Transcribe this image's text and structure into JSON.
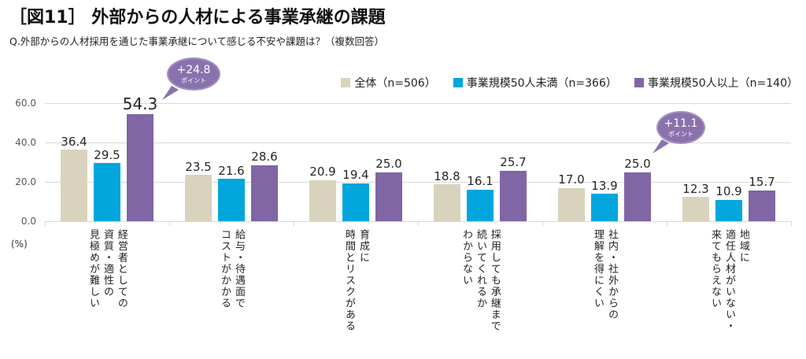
{
  "title": "［図11］ 外部からの人材による事業承継の課題",
  "subtitle": "Q.外部からの人材採用を通じた事業承継について感じる不安や課題は？（複数回答）",
  "legend": [
    {
      "label": "全体（n=506）",
      "color": "#d9d3bd"
    },
    {
      "label": "事業規模50人未満（n=366）",
      "color": "#00a6dc"
    },
    {
      "label": "事業規模50人以上（n=140）",
      "color": "#8066a4"
    }
  ],
  "y_axis": {
    "ticks": [
      "60.0",
      "40.0",
      "20.0",
      "0.0"
    ],
    "unit": "(%)",
    "max": 60
  },
  "callouts": [
    {
      "value": "+24.8",
      "unit": "ポイント"
    },
    {
      "value": "+11.1",
      "unit": "ポイント"
    }
  ],
  "chart_data": {
    "type": "bar",
    "title": "［図11］ 外部からの人材による事業承継の課題",
    "subtitle": "Q.外部からの人材採用を通じた事業承継について感じる不安や課題は？（複数回答）",
    "categories": [
      "経営者としての\n資質・適性の\n見極めが難しい",
      "給与・待遇面で\nコストがかかる",
      "育成に\n時間とリスクがある",
      "採用しても承継まで\n続いてくれるか\nわからない",
      "社内・社外からの\n理解を得にくい",
      "地域に\n適任人材がいない・\n来てもらえない"
    ],
    "series": [
      {
        "name": "全体（n=506）",
        "color": "#d9d3bd",
        "values": [
          36.4,
          23.5,
          20.9,
          18.8,
          17.0,
          12.3
        ]
      },
      {
        "name": "事業規模50人未満（n=366）",
        "color": "#00a6dc",
        "values": [
          29.5,
          21.6,
          19.4,
          16.1,
          13.9,
          10.9
        ]
      },
      {
        "name": "事業規模50人以上（n=140）",
        "color": "#8066a4",
        "values": [
          54.3,
          28.6,
          25.0,
          25.7,
          25.0,
          15.7
        ]
      }
    ],
    "xlabel": "",
    "ylabel": "(%)",
    "ylim": [
      0,
      60
    ],
    "ytick_step": 20,
    "grid": true,
    "legend_position": "top-right",
    "annotations": [
      {
        "text": "+24.8ポイント",
        "category_index": 0,
        "series": "事業規模50人以上（n=140）"
      },
      {
        "text": "+11.1ポイント",
        "category_index": 4,
        "series": "事業規模50人以上（n=140）"
      }
    ]
  }
}
